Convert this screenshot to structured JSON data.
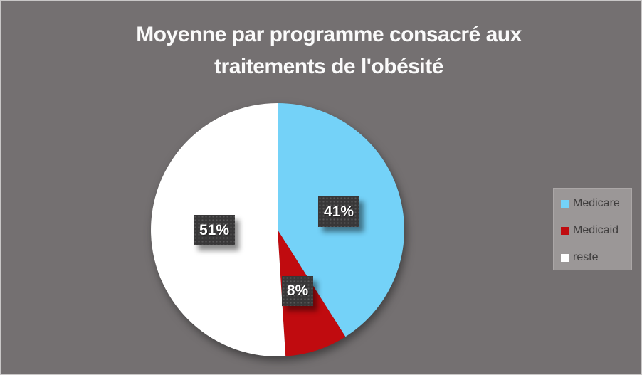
{
  "window": {
    "background_color": "#747071",
    "border_color": "#c9c7c7"
  },
  "chart_data": {
    "type": "pie",
    "title": "Moyenne par programme consacré aux traitements de l'obésité",
    "title_lines": [
      "Moyenne par programme consacré aux",
      "traitements de l'obésité"
    ],
    "categories": [
      "Medicare",
      "Medicaid",
      "reste"
    ],
    "values": [
      41,
      8,
      51
    ],
    "unit": "%",
    "slice_colors": [
      "#74D2F8",
      "#C00B0F",
      "#FFFFFF"
    ],
    "data_labels": [
      "41%",
      "8%",
      "51%"
    ],
    "start_angle_deg": 0,
    "direction": "clockwise",
    "legend_position": "right"
  },
  "legend": {
    "items": [
      {
        "label": "Medicare",
        "color": "#74D2F8"
      },
      {
        "label": "Medicaid",
        "color": "#C00B0F"
      },
      {
        "label": "reste",
        "color": "#FFFFFF"
      }
    ]
  },
  "styles": {
    "title_color": "#fafafa",
    "data_label_box_color": "#383738",
    "data_label_text_color": "#ffffff",
    "legend_background": "#9b9797",
    "legend_text_color": "#3f3d3d"
  }
}
